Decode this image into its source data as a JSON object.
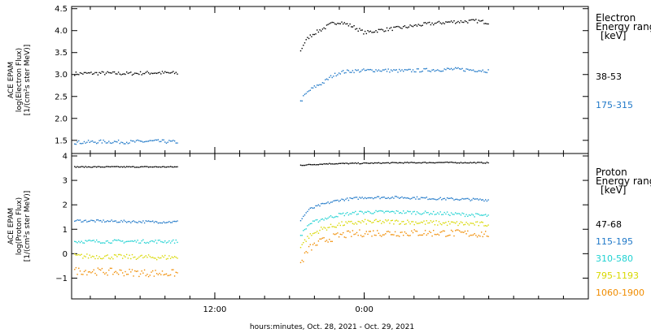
{
  "chart_data": [
    {
      "type": "scatter",
      "panel": "electron",
      "ylabel_lines": [
        "ACE EPAM",
        "log(Electron Flux)",
        "[1/(cm²s ster MeV)]"
      ],
      "ylim": [
        1.2,
        4.55
      ],
      "yticks": [
        "1.5",
        "2.0",
        "2.5",
        "3.0",
        "3.5",
        "4.0",
        "4.5"
      ],
      "ytick_values": [
        1.5,
        2.0,
        2.5,
        3.0,
        3.5,
        4.0,
        4.5
      ],
      "legend_title_lines": [
        "Electron",
        "Energy ranges",
        "[keV]"
      ],
      "gap": [
        -3.0,
        6.8
      ],
      "series": [
        {
          "name": "38-53",
          "color": "#000000",
          "t": [
            -11.3,
            -9,
            -7,
            -5,
            -3,
            -1,
            1,
            3,
            5,
            6.8,
            7.1,
            7.5,
            8,
            8.7,
            9.3,
            10,
            11,
            12,
            13,
            15,
            17,
            19,
            21,
            22
          ],
          "v": [
            3.02,
            3.03,
            3.02,
            3.04,
            3.03,
            3.04,
            3.02,
            3.06,
            3.05,
            3.5,
            3.7,
            3.85,
            3.95,
            4.05,
            4.15,
            4.2,
            4.1,
            3.95,
            4.0,
            4.07,
            4.15,
            4.2,
            4.22,
            4.18
          ],
          "noise": 0.04
        },
        {
          "name": "175-315",
          "color": "#1f78c8",
          "t": [
            -11.3,
            -9,
            -7,
            -5,
            -3,
            -1,
            1,
            3,
            5,
            6.8,
            7.1,
            7.5,
            8,
            8.7,
            9.3,
            10,
            11,
            13,
            15,
            17,
            19,
            21,
            22
          ],
          "v": [
            1.45,
            1.47,
            1.46,
            1.48,
            1.46,
            1.47,
            1.46,
            1.47,
            1.46,
            2.35,
            2.5,
            2.62,
            2.72,
            2.82,
            2.95,
            3.05,
            3.08,
            3.1,
            3.08,
            3.1,
            3.12,
            3.1,
            3.08
          ],
          "noise": 0.04
        }
      ]
    },
    {
      "type": "scatter",
      "panel": "proton",
      "ylabel_lines": [
        "ACE EPAM",
        "log(Proton Flux)",
        "[1/(cm²s ster MeV)]"
      ],
      "ylim": [
        -1.85,
        4.1
      ],
      "yticks": [
        "−1",
        "0",
        "1",
        "2",
        "3",
        "4"
      ],
      "ytick_values": [
        -1,
        0,
        1,
        2,
        3,
        4
      ],
      "legend_title_lines": [
        "Proton",
        "Energy ranges",
        "[keV]"
      ],
      "gap": [
        -3.0,
        6.8
      ],
      "series": [
        {
          "name": "47-68",
          "color": "#000000",
          "t": [
            -11.3,
            -5,
            5,
            6.8,
            9,
            12,
            15,
            18,
            22
          ],
          "v": [
            3.55,
            3.55,
            3.55,
            3.62,
            3.68,
            3.7,
            3.72,
            3.73,
            3.72
          ],
          "noise": 0.02
        },
        {
          "name": "115-195",
          "color": "#1f78c8",
          "t": [
            -11.3,
            -5,
            0,
            5,
            6.8,
            7.5,
            8.5,
            10,
            12,
            15,
            18,
            22
          ],
          "v": [
            1.35,
            1.3,
            1.3,
            1.3,
            1.35,
            1.8,
            2.0,
            2.2,
            2.3,
            2.3,
            2.25,
            2.2
          ],
          "noise": 0.05
        },
        {
          "name": "310-580",
          "color": "#20d2d2",
          "t": [
            -11.3,
            -5,
            0,
            5,
            6.8,
            7.5,
            8.5,
            10,
            12,
            15,
            18,
            22
          ],
          "v": [
            0.5,
            0.5,
            0.5,
            0.45,
            0.7,
            1.2,
            1.4,
            1.6,
            1.7,
            1.7,
            1.65,
            1.55
          ],
          "noise": 0.07
        },
        {
          "name": "795-1193",
          "color": "#d8d800",
          "t": [
            -11.3,
            -5,
            0,
            5,
            6.8,
            7.5,
            8.5,
            10,
            12,
            15,
            18,
            22
          ],
          "v": [
            -0.1,
            -0.15,
            -0.15,
            -0.2,
            0.3,
            0.7,
            1.0,
            1.2,
            1.3,
            1.3,
            1.25,
            1.2
          ],
          "noise": 0.1
        },
        {
          "name": "1060-1900",
          "color": "#f08c00",
          "t": [
            -11.3,
            -5,
            0,
            5,
            6.8,
            7.5,
            8.5,
            10,
            12,
            15,
            18,
            22
          ],
          "v": [
            -0.7,
            -0.8,
            -0.8,
            -0.9,
            -0.45,
            0.2,
            0.5,
            0.75,
            0.85,
            0.85,
            0.85,
            0.8
          ],
          "noise": 0.15
        }
      ]
    }
  ],
  "xaxis": {
    "ticks": [
      "12:00",
      "0:00"
    ],
    "tick_hours": [
      0,
      12
    ],
    "xlim": [
      -11.5,
      30
    ],
    "label": "hours:minutes, Oct. 28, 2021 - Oct. 29, 2021"
  }
}
